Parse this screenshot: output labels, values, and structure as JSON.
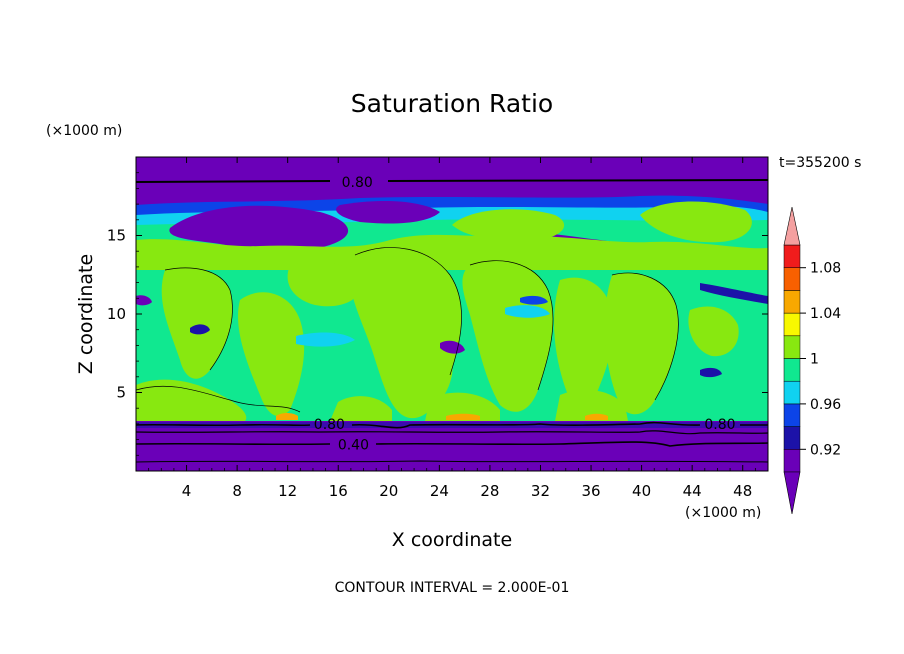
{
  "chart_data": {
    "type": "contour",
    "title": "Saturation Ratio",
    "xlabel": "X coordinate",
    "ylabel": "Z coordinate",
    "x_unit": "(×1000 m)",
    "y_unit": "(×1000 m)",
    "time_label": "t=355200 s",
    "contour_interval_label": "CONTOUR INTERVAL = 2.000E-01",
    "xlim": [
      0,
      50
    ],
    "ylim": [
      0,
      20
    ],
    "x_ticks": [
      4,
      8,
      12,
      16,
      20,
      24,
      28,
      32,
      36,
      40,
      44,
      48
    ],
    "y_ticks": [
      5,
      10,
      15
    ],
    "contour_labels": [
      {
        "text": "0.80",
        "x": 17.5,
        "z": 18.4
      },
      {
        "text": "0.80",
        "x": 15.3,
        "z": 3.0
      },
      {
        "text": "0.40",
        "x": 17.2,
        "z": 1.7
      },
      {
        "text": "0.80",
        "x": 46.2,
        "z": 3.0
      }
    ],
    "colorbar": {
      "levels": [
        0.9,
        0.92,
        0.94,
        0.96,
        0.98,
        1.0,
        1.02,
        1.04,
        1.06,
        1.08,
        1.1
      ],
      "tick_labels": [
        "0.92",
        "0.96",
        "1",
        "1.04",
        "1.08"
      ],
      "colors": [
        "#6a00b8",
        "#1c12a8",
        "#0c44e8",
        "#10d2f0",
        "#10e890",
        "#88e810",
        "#f8f800",
        "#f8a800",
        "#f86000",
        "#f01c1c"
      ],
      "under_color": "#6a00b8",
      "over_color": "#f4a0a0"
    },
    "region_colors": {
      "very_dry": "#6a00b8",
      "dry": "#1c12a8",
      "dark_blue": "#0c44e8",
      "cyan": "#10d2f0",
      "teal": "#10e890",
      "green": "#88e810",
      "yellow": "#f8f800",
      "orange": "#f8a800"
    }
  }
}
